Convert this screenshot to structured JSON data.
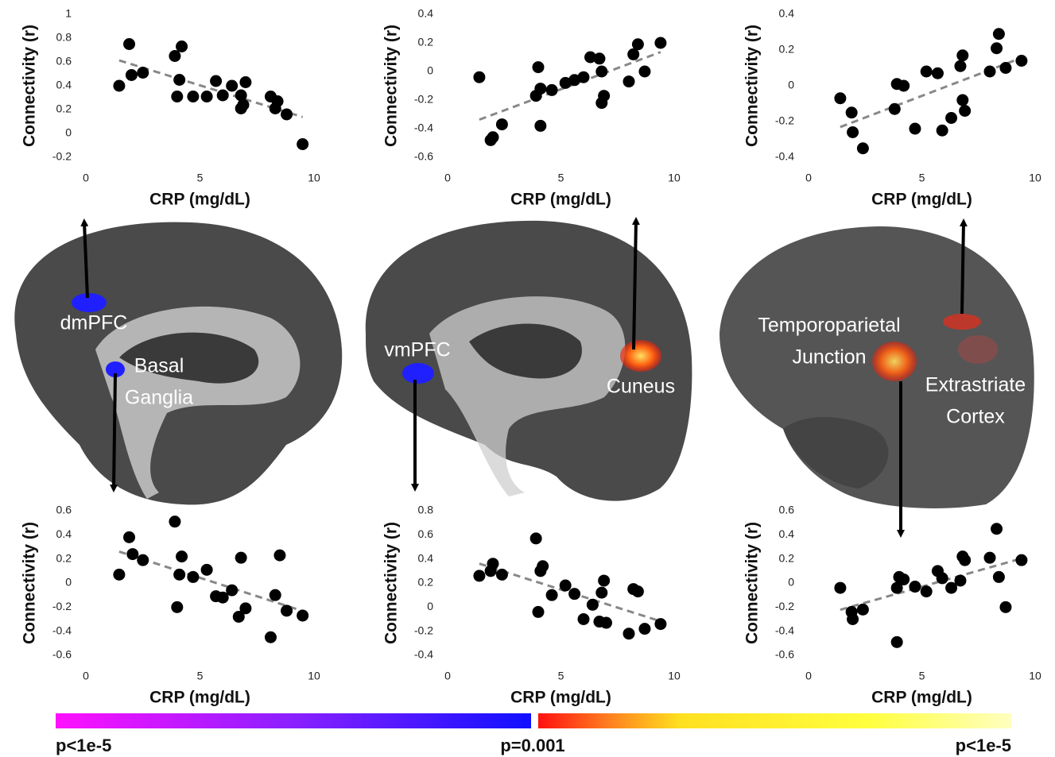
{
  "chart_data": [
    {
      "type": "scatter",
      "xlabel": "CRP (mg/dL)",
      "ylabel": "Connectivity (r)",
      "color": "#000000",
      "trendline": true,
      "trend_color": "#888888",
      "x": [
        1.46,
        1.9,
        2.0,
        2.5,
        3.9,
        4.2,
        4.1,
        4.0,
        4.7,
        5.3,
        5.7,
        6.0,
        6.4,
        7.0,
        6.8,
        6.8,
        6.9,
        8.1,
        8.4,
        8.3,
        8.8,
        9.5
      ],
      "values": [
        0.4,
        0.75,
        0.49,
        0.51,
        0.65,
        0.73,
        0.45,
        0.31,
        0.31,
        0.31,
        0.44,
        0.32,
        0.4,
        0.43,
        0.32,
        0.21,
        0.24,
        0.31,
        0.27,
        0.21,
        0.16,
        -0.09
      ],
      "xlim": [
        0,
        10
      ],
      "xticks": [
        0,
        5,
        10
      ],
      "ylim": [
        -0.2,
        1
      ],
      "yticks": [
        -0.2,
        0,
        0.2,
        0.4,
        0.6,
        0.8,
        1
      ]
    },
    {
      "type": "scatter",
      "xlabel": "CRP (mg/dL)",
      "ylabel": "Connectivity (r)",
      "color": "#000000",
      "trendline": true,
      "trend_color": "#888888",
      "x": [
        1.4,
        1.9,
        2.0,
        2.4,
        4.0,
        3.9,
        4.1,
        4.1,
        4.6,
        5.2,
        5.6,
        6.0,
        6.3,
        6.7,
        6.8,
        6.9,
        6.8,
        8.0,
        8.2,
        8.4,
        8.7,
        9.4
      ],
      "values": [
        -0.04,
        -0.48,
        -0.46,
        -0.37,
        0.03,
        -0.17,
        -0.12,
        -0.38,
        -0.13,
        -0.08,
        -0.06,
        -0.04,
        0.1,
        0.09,
        0,
        -0.17,
        -0.22,
        -0.07,
        0.12,
        0.19,
        0,
        0.2
      ],
      "xlim": [
        0,
        10
      ],
      "xticks": [
        0,
        5,
        10
      ],
      "ylim": [
        -0.6,
        0.4
      ],
      "yticks": [
        -0.6,
        -0.4,
        -0.2,
        0,
        0.2,
        0.4
      ]
    },
    {
      "type": "scatter",
      "xlabel": "CRP (mg/dL)",
      "ylabel": "Connectivity (r)",
      "color": "#000000",
      "trendline": true,
      "trend_color": "#888888",
      "x": [
        1.4,
        1.9,
        1.95,
        2.4,
        3.8,
        3.9,
        4.2,
        4.7,
        5.2,
        5.7,
        5.9,
        6.3,
        6.7,
        6.8,
        6.8,
        6.9,
        8.0,
        8.3,
        8.4,
        8.7,
        9.4
      ],
      "values": [
        -0.07,
        -0.15,
        -0.26,
        -0.35,
        -0.13,
        0.01,
        0,
        -0.24,
        0.08,
        0.07,
        -0.25,
        -0.18,
        0.11,
        0.17,
        -0.08,
        -0.14,
        0.08,
        0.21,
        0.29,
        0.1,
        0.14
      ],
      "xlim": [
        0,
        10
      ],
      "xticks": [
        0,
        5,
        10
      ],
      "ylim": [
        -0.4,
        0.4
      ],
      "yticks": [
        -0.4,
        -0.2,
        0,
        0.2,
        0.4
      ]
    },
    {
      "type": "scatter",
      "xlabel": "CRP (mg/dL)",
      "ylabel": "Connectivity (r)",
      "color": "#000000",
      "trendline": true,
      "trend_color": "#888888",
      "x": [
        1.46,
        1.9,
        2.05,
        2.5,
        3.9,
        4.0,
        4.2,
        4.1,
        4.7,
        5.3,
        5.7,
        6.0,
        6.4,
        6.8,
        6.7,
        7.0,
        8.1,
        8.3,
        8.5,
        8.8,
        9.5
      ],
      "values": [
        0.07,
        0.38,
        0.24,
        0.19,
        0.51,
        -0.2,
        0.22,
        0.07,
        0.05,
        0.11,
        -0.11,
        -0.12,
        -0.06,
        0.21,
        -0.28,
        -0.21,
        -0.45,
        -0.1,
        0.23,
        -0.23,
        -0.27
      ],
      "xlim": [
        0,
        10
      ],
      "xticks": [
        0,
        5,
        10
      ],
      "ylim": [
        -0.6,
        0.6
      ],
      "yticks": [
        -0.6,
        -0.4,
        -0.2,
        0,
        0.2,
        0.4,
        0.6
      ]
    },
    {
      "type": "scatter",
      "xlabel": "CRP (mg/dL)",
      "ylabel": "Connectivity (r)",
      "color": "#000000",
      "trendline": true,
      "trend_color": "#888888",
      "x": [
        1.4,
        1.9,
        2.0,
        2.4,
        3.9,
        4.0,
        4.1,
        4.2,
        4.6,
        5.2,
        5.6,
        6.0,
        6.4,
        6.8,
        6.9,
        6.7,
        7.0,
        8.0,
        8.2,
        8.4,
        8.7,
        9.4
      ],
      "values": [
        0.26,
        0.3,
        0.36,
        0.27,
        0.57,
        -0.04,
        0.3,
        0.34,
        0.1,
        0.18,
        0.11,
        -0.1,
        0.02,
        0.12,
        0.22,
        -0.12,
        -0.13,
        -0.22,
        0.15,
        0.13,
        -0.18,
        -0.14
      ],
      "xlim": [
        0,
        10
      ],
      "xticks": [
        0,
        5,
        10
      ],
      "ylim": [
        -0.4,
        0.8
      ],
      "yticks": [
        -0.4,
        -0.2,
        0,
        0.2,
        0.4,
        0.6,
        0.8
      ]
    },
    {
      "type": "scatter",
      "xlabel": "CRP (mg/dL)",
      "ylabel": "Connectivity (r)",
      "color": "#000000",
      "trendline": true,
      "trend_color": "#888888",
      "x": [
        1.4,
        1.9,
        1.95,
        2.4,
        3.9,
        3.9,
        4.0,
        4.2,
        4.7,
        5.2,
        5.7,
        5.9,
        6.3,
        6.7,
        6.8,
        6.9,
        8.0,
        8.3,
        8.4,
        8.7,
        9.4
      ],
      "values": [
        -0.04,
        -0.24,
        -0.3,
        -0.22,
        -0.49,
        -0.04,
        0.05,
        0.03,
        -0.03,
        -0.07,
        0.1,
        0.04,
        -0.04,
        0.02,
        0.22,
        0.19,
        0.21,
        0.45,
        0.05,
        -0.2,
        0.19
      ],
      "xlim": [
        0,
        10
      ],
      "xticks": [
        0,
        5,
        10
      ],
      "ylim": [
        -0.6,
        0.6
      ],
      "yticks": [
        -0.6,
        -0.4,
        -0.2,
        0,
        0.2,
        0.4,
        0.6
      ]
    }
  ],
  "regions": [
    {
      "lines": [
        "dmPFC"
      ]
    },
    {
      "lines": [
        "Basal",
        "Ganglia"
      ]
    },
    {
      "lines": [
        "vmPFC"
      ]
    },
    {
      "lines": [
        "Cuneus"
      ]
    },
    {
      "lines": [
        "Temporoparietal",
        "Junction"
      ]
    },
    {
      "lines": [
        "Extrastriate",
        "Cortex"
      ]
    }
  ],
  "colorbar": {
    "labels": [
      "p<1e-5",
      "p=0.001",
      "p<1e-5"
    ]
  }
}
